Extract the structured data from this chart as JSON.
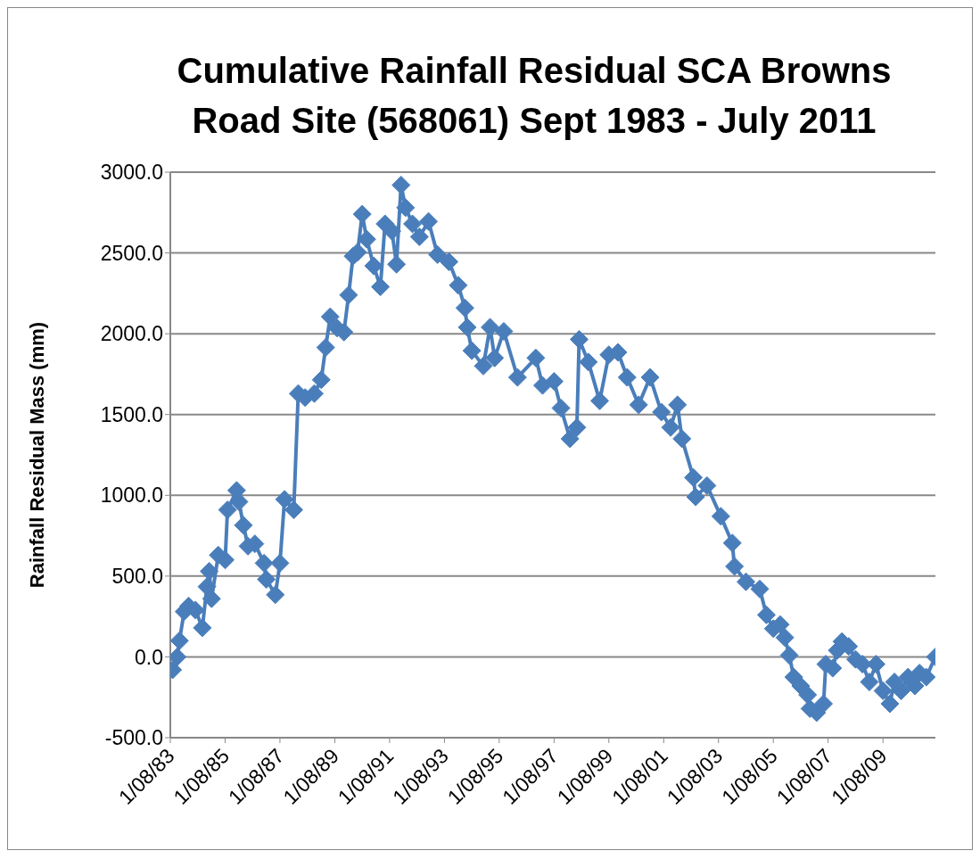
{
  "chart_data": {
    "type": "line",
    "title": "Cumulative Rainfall Residual SCA Browns Road Site (568061) Sept 1983 - July 2011",
    "ylabel": "Rainfall Residual Mass (mm)",
    "x": [
      "1983-09",
      "1983-11",
      "1983-12",
      "1984-02",
      "1984-04",
      "1984-07",
      "1984-10",
      "1984-12",
      "1985-01",
      "1985-02",
      "1985-05",
      "1985-08",
      "1985-09",
      "1986-01",
      "1986-02",
      "1986-04",
      "1986-06",
      "1986-09",
      "1987-01",
      "1987-02",
      "1987-06",
      "1987-08",
      "1987-10",
      "1988-02",
      "1988-04",
      "1988-07",
      "1988-11",
      "1989-02",
      "1989-04",
      "1989-06",
      "1989-09",
      "1989-12",
      "1990-02",
      "1990-04",
      "1990-06",
      "1990-08",
      "1990-10",
      "1991-01",
      "1991-04",
      "1991-06",
      "1991-09",
      "1991-11",
      "1992-01",
      "1992-03",
      "1992-06",
      "1992-09",
      "1993-01",
      "1993-05",
      "1993-10",
      "1994-02",
      "1994-05",
      "1994-06",
      "1994-08",
      "1995-01",
      "1995-04",
      "1995-06",
      "1995-10",
      "1996-04",
      "1996-12",
      "1997-03",
      "1997-08",
      "1997-11",
      "1998-03",
      "1998-06",
      "1998-07",
      "1998-11",
      "1999-04",
      "1999-08",
      "1999-12",
      "2000-04",
      "2000-09",
      "2001-02",
      "2001-07",
      "2001-11",
      "2002-02",
      "2002-04",
      "2002-09",
      "2002-10",
      "2003-03",
      "2003-09",
      "2004-02",
      "2004-03",
      "2004-08",
      "2005-02",
      "2005-05",
      "2005-08",
      "2005-11",
      "2006-01",
      "2006-03",
      "2006-05",
      "2006-08",
      "2006-11",
      "2006-12",
      "2007-03",
      "2007-06",
      "2007-07",
      "2007-10",
      "2007-12",
      "2008-02",
      "2008-05",
      "2008-08",
      "2008-11",
      "2009-02",
      "2009-05",
      "2009-08",
      "2009-11",
      "2010-01",
      "2010-04",
      "2010-07",
      "2010-10",
      "2010-12",
      "2011-03",
      "2011-07"
    ],
    "series": [
      {
        "color": "#4a7ebb",
        "values": [
          -80,
          0,
          100,
          280,
          315,
          290,
          180,
          435,
          530,
          360,
          630,
          600,
          910,
          1030,
          960,
          815,
          685,
          700,
          580,
          480,
          385,
          580,
          975,
          910,
          1630,
          1605,
          1630,
          1715,
          1915,
          2105,
          2035,
          2010,
          2240,
          2480,
          2505,
          2740,
          2585,
          2420,
          2290,
          2680,
          2635,
          2430,
          2920,
          2780,
          2680,
          2600,
          2695,
          2490,
          2445,
          2300,
          2160,
          2040,
          1895,
          1800,
          2040,
          1850,
          2015,
          1730,
          1850,
          1680,
          1705,
          1540,
          1350,
          1420,
          1965,
          1825,
          1585,
          1870,
          1885,
          1730,
          1560,
          1730,
          1515,
          1420,
          1560,
          1350,
          1110,
          990,
          1060,
          870,
          705,
          560,
          465,
          420,
          260,
          175,
          200,
          120,
          10,
          -125,
          -180,
          -235,
          -320,
          -345,
          -290,
          -45,
          -70,
          40,
          95,
          65,
          -15,
          -45,
          -155,
          -45,
          -210,
          -290,
          -155,
          -210,
          -125,
          -180,
          -100,
          -125,
          0
        ]
      }
    ],
    "xlim": [
      "1983-08-01",
      "2011-07-01"
    ],
    "xticks": [
      {
        "value": "1983-08-01",
        "label": "1/08/83"
      },
      {
        "value": "1985-08-01",
        "label": "1/08/85"
      },
      {
        "value": "1987-08-01",
        "label": "1/08/87"
      },
      {
        "value": "1989-08-01",
        "label": "1/08/89"
      },
      {
        "value": "1991-08-01",
        "label": "1/08/91"
      },
      {
        "value": "1993-08-01",
        "label": "1/08/93"
      },
      {
        "value": "1995-08-01",
        "label": "1/08/95"
      },
      {
        "value": "1997-08-01",
        "label": "1/08/97"
      },
      {
        "value": "1999-08-01",
        "label": "1/08/99"
      },
      {
        "value": "2001-08-01",
        "label": "1/08/01"
      },
      {
        "value": "2003-08-01",
        "label": "1/08/03"
      },
      {
        "value": "2005-08-01",
        "label": "1/08/05"
      },
      {
        "value": "2007-08-01",
        "label": "1/08/07"
      },
      {
        "value": "2009-08-01",
        "label": "1/08/09"
      }
    ],
    "ylim": [
      -500,
      3000
    ],
    "yticks": [
      {
        "value": -500,
        "label": "-500.0"
      },
      {
        "value": 0,
        "label": "0.0"
      },
      {
        "value": 500,
        "label": "500.0"
      },
      {
        "value": 1000,
        "label": "1000.0"
      },
      {
        "value": 1500,
        "label": "1500.0"
      },
      {
        "value": 2000,
        "label": "2000.0"
      },
      {
        "value": 2500,
        "label": "2500.0"
      },
      {
        "value": 3000,
        "label": "3000.0"
      }
    ],
    "grid": "y",
    "marker": "diamond",
    "line_style": "solid",
    "legend": false
  }
}
